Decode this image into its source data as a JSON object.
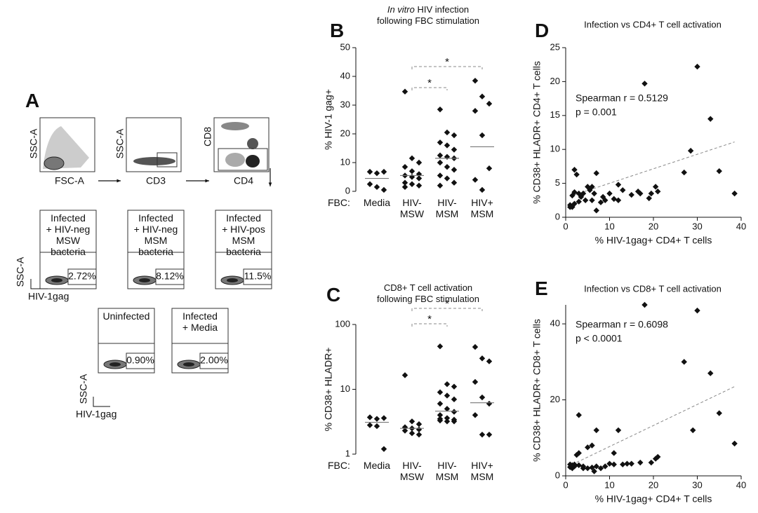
{
  "panel_a": {
    "label": "A",
    "row1": [
      {
        "y_label": "SSC-A",
        "x_label": "FSC-A"
      },
      {
        "y_label": "SSC-A",
        "x_label": "CD3"
      },
      {
        "y_label": "CD8",
        "x_label": "CD4"
      }
    ],
    "row2": {
      "y_label": "SSC-A",
      "x_label": "HIV-1gag",
      "plots": [
        {
          "title": "Infected\n+ HIV-neg\nMSW bacteria",
          "gate": "2.72%"
        },
        {
          "title": "Infected\n+ HIV-neg\nMSM bacteria",
          "gate": "8.12%"
        },
        {
          "title": "Infected\n+ HIV-pos\nMSM bacteria",
          "gate": "11.5%"
        }
      ]
    },
    "row3": {
      "y_label": "SSC-A",
      "x_label": "HIV-1gag",
      "plots": [
        {
          "title": "Uninfected",
          "gate": "0.90%"
        },
        {
          "title": "Infected\n+ Media",
          "gate": "2.00%"
        }
      ]
    }
  },
  "chart_data": [
    {
      "panel": "B",
      "type": "dot",
      "title_italic": "In vitro",
      "title": " HIV infection\nfollowing FBC stimulation",
      "ylabel": "% HIV-1 gag+",
      "xlabel": "FBC:",
      "categories": [
        "Media",
        "HIV-\nMSW",
        "HIV-\nMSM",
        "HIV+\nMSM"
      ],
      "values": [
        [
          6.8,
          6.3,
          6.8,
          2.5,
          1.5,
          0.5
        ],
        [
          34.7,
          11.5,
          10,
          8.5,
          7,
          6,
          5.5,
          5,
          4.5,
          3,
          2.5,
          2,
          1.5
        ],
        [
          28.5,
          20.5,
          19.5,
          17,
          16,
          14.5,
          12.5,
          12,
          11.5,
          10,
          8.5,
          7.5,
          5.5,
          4.5,
          3,
          2
        ],
        [
          38.5,
          33,
          30.5,
          28,
          19.5,
          8,
          4,
          0.5
        ]
      ],
      "medians": [
        4.5,
        5.5,
        11.5,
        15.5
      ],
      "ylim": [
        0,
        50
      ],
      "yticks": [
        0,
        10,
        20,
        30,
        40,
        50
      ],
      "log": false,
      "color": "#111111",
      "median_color": "#777777",
      "significance": [
        {
          "from": 1,
          "to": 2,
          "label": "*"
        },
        {
          "from": 1,
          "to": 3,
          "label": "*"
        }
      ]
    },
    {
      "panel": "C",
      "type": "dot",
      "title": "CD8+ T cell activation\nfollowing FBC stimulation",
      "ylabel": "% CD38+ HLADR+",
      "xlabel": "FBC:",
      "categories": [
        "Media",
        "HIV-\nMSW",
        "HIV-\nMSM",
        "HIV+\nMSM"
      ],
      "values": [
        [
          3.7,
          3.5,
          3.6,
          2.8,
          2.7,
          1.2
        ],
        [
          16.5,
          3.2,
          2.9,
          2.6,
          2.5,
          2.4,
          2.3,
          2.1,
          2.0
        ],
        [
          46,
          12,
          11,
          9,
          8,
          7,
          6,
          5,
          4.5,
          4,
          3.6,
          3.4,
          3.3,
          3.2,
          3.2,
          3.5
        ],
        [
          45,
          30,
          27,
          13,
          7.5,
          6,
          4,
          2,
          2
        ]
      ],
      "medians": [
        3.1,
        2.5,
        4.6,
        6.2
      ],
      "ylim": [
        1,
        100
      ],
      "yticks": [
        1,
        10,
        100
      ],
      "log": true,
      "color": "#111111",
      "median_color": "#777777",
      "significance": [
        {
          "from": 1,
          "to": 2,
          "label": "*"
        },
        {
          "from": 1,
          "to": 3,
          "label": "*"
        }
      ]
    },
    {
      "panel": "D",
      "type": "scatter",
      "title": "Infection vs CD4+ T cell activation",
      "xlabel": "% HIV-1gag+ CD4+ T cells",
      "ylabel": "% CD38+ HLADR+ CD4+ T cells",
      "x": [
        30,
        18,
        33,
        28.5,
        35,
        27,
        38.5,
        20.5,
        21,
        19.5,
        16.5,
        17,
        12,
        13,
        10,
        11,
        12,
        8,
        7,
        5,
        5.5,
        6,
        6.5,
        4,
        4.5,
        3,
        3,
        2,
        2.5,
        2,
        1.5,
        1,
        1.5,
        1,
        2,
        3.5,
        6,
        7,
        8.5,
        19,
        9,
        15
      ],
      "y": [
        22.2,
        19.7,
        14.5,
        9.8,
        6.8,
        6.6,
        3.5,
        4.5,
        3.8,
        3.5,
        3.8,
        3.5,
        4.8,
        4,
        3.5,
        2.7,
        2.5,
        2.2,
        6.5,
        4.5,
        4,
        4.5,
        3.5,
        3.5,
        2.5,
        3.5,
        2.3,
        7,
        6.3,
        3.7,
        3.2,
        1.8,
        1.5,
        1.5,
        2,
        3,
        2.5,
        1,
        3,
        2.8,
        2.5,
        3.3
      ],
      "trendline": {
        "x": [
          2,
          38.5
        ],
        "y": [
          3.3,
          11.1
        ]
      },
      "annotations": [
        "Spearman r = 0.5129",
        "p = 0.001"
      ],
      "xlim": [
        0,
        40
      ],
      "xticks": [
        0,
        10,
        20,
        30,
        40
      ],
      "ylim": [
        0,
        25
      ],
      "yticks": [
        0,
        5,
        10,
        15,
        20,
        25
      ],
      "color": "#111111",
      "trend_color": "#888888"
    },
    {
      "panel": "E",
      "type": "scatter",
      "title": "Infection vs CD8+ T cell activation",
      "xlabel": "% HIV-1gag+ CD4+ T cells",
      "ylabel": "% CD38+ HLADR+ CD8+ T cells",
      "x": [
        18,
        30,
        27,
        33,
        35,
        29,
        38.5,
        21,
        20.5,
        19.5,
        17,
        15,
        13,
        12,
        11,
        10,
        7,
        6,
        5,
        3,
        2.5,
        3,
        8,
        7,
        6,
        5,
        4,
        3,
        2,
        1.5,
        1,
        1,
        2,
        4,
        6.5,
        9,
        11,
        14,
        1.5
      ],
      "y": [
        45,
        43.5,
        30,
        27,
        16.5,
        12,
        8.5,
        5,
        4.5,
        3.5,
        3.5,
        3.2,
        3,
        12,
        6,
        3.2,
        12,
        8,
        7.5,
        16,
        5.5,
        6,
        2,
        2.5,
        2.2,
        2,
        2.5,
        2.8,
        2.5,
        2,
        2.3,
        3,
        3,
        2,
        1.2,
        2.5,
        3,
        3.2,
        2.8
      ],
      "trendline": {
        "x": [
          1.5,
          38.5
        ],
        "y": [
          3,
          23.5
        ]
      },
      "annotations": [
        "Spearman r = 0.6098",
        "p < 0.0001"
      ],
      "xlim": [
        0,
        40
      ],
      "xticks": [
        0,
        10,
        20,
        30,
        40
      ],
      "ylim": [
        0,
        45
      ],
      "yticks": [
        0,
        20,
        40
      ],
      "color": "#111111",
      "trend_color": "#888888"
    }
  ]
}
